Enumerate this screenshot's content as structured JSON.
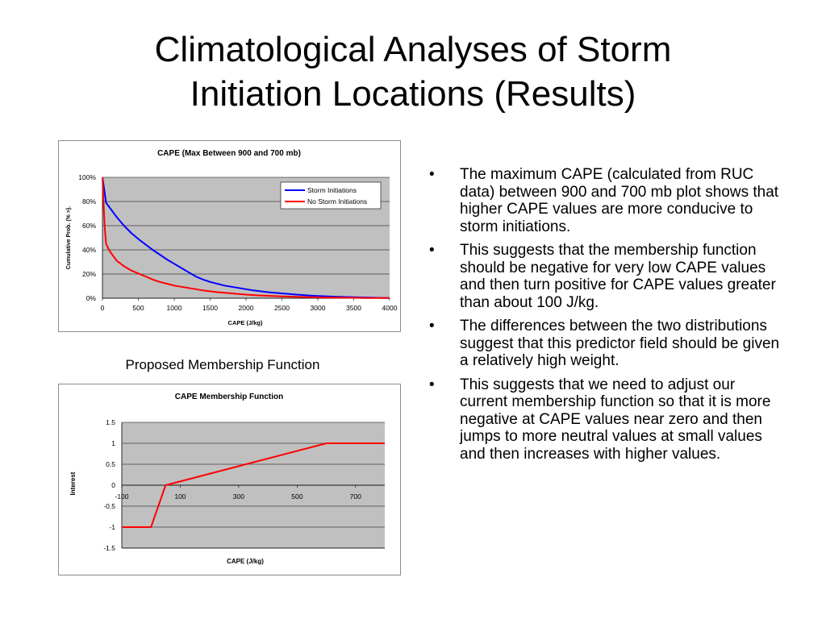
{
  "slide": {
    "title_line1": "Climatological Analyses of Storm",
    "title_line2": "Initiation Locations (Results)",
    "caption": "Proposed Membership Function",
    "bullet_glyph": "•",
    "bullets": [
      "The maximum CAPE (calculated from RUC data) between 900 and 700 mb plot shows that higher CAPE values are more conducive to storm initiations.",
      "This suggests that the membership function should be negative for very low CAPE values and then turn positive for CAPE values greater than about 100 J/kg.",
      "The differences between the two distributions suggest that this predictor field should be given a relatively high weight.",
      "This suggests that we need to adjust our current membership function so that it is more negative at CAPE values near zero and then jumps to more neutral values at small values and then increases with higher values."
    ]
  },
  "chart_data": [
    {
      "type": "line",
      "title": "CAPE (Max Between 900 and 700 mb)",
      "xlabel": "CAPE (J/kg)",
      "ylabel": "Cumulative Prob. (% >).",
      "xlim": [
        0,
        4000
      ],
      "ylim": [
        0,
        100
      ],
      "x_ticks": [
        "0",
        "500",
        "1000",
        "1500",
        "2000",
        "2500",
        "3000",
        "3500",
        "4000"
      ],
      "y_ticks": [
        "0%",
        "20%",
        "40%",
        "60%",
        "80%",
        "100%"
      ],
      "grid": true,
      "legend": "top-right",
      "plot_background": "#c0c0c0",
      "series": [
        {
          "name": "Storm Initiations",
          "color": "#0000ff",
          "x": [
            0,
            25,
            50,
            100,
            200,
            300,
            400,
            500,
            600,
            700,
            800,
            900,
            1000,
            1100,
            1200,
            1300,
            1400,
            1500,
            1700,
            1900,
            2100,
            2300,
            2500,
            2700,
            2900,
            3100,
            3300,
            3500,
            3700,
            3900,
            4000
          ],
          "y": [
            100,
            90,
            79,
            75,
            67,
            60,
            54,
            49,
            44.5,
            40,
            36,
            32,
            28.5,
            25,
            21.5,
            18,
            15.5,
            13.5,
            10.5,
            8.5,
            6.5,
            5,
            4,
            3,
            2.2,
            1.6,
            1.2,
            0.8,
            0.5,
            0.3,
            0.2
          ]
        },
        {
          "name": "No Storm Initiations",
          "color": "#ff0000",
          "x": [
            0,
            15,
            30,
            50,
            75,
            100,
            150,
            200,
            300,
            400,
            500,
            600,
            700,
            800,
            900,
            1000,
            1200,
            1400,
            1600,
            1800,
            2000,
            2200,
            2500,
            2800,
            3100,
            3400,
            3700,
            4000
          ],
          "y": [
            100,
            80,
            60,
            45,
            42,
            39,
            35,
            31,
            26.5,
            23,
            20.5,
            18,
            15.5,
            13.5,
            12,
            10.5,
            8.5,
            6.5,
            5,
            4,
            3,
            2.3,
            1.5,
            1,
            0.6,
            0.4,
            0.2,
            0.1
          ]
        }
      ]
    },
    {
      "type": "line",
      "title": "CAPE Membership Function",
      "xlabel": "CAPE (J/kg)",
      "ylabel": "Interest",
      "xlim": [
        -100,
        800
      ],
      "ylim": [
        -1.5,
        1.5
      ],
      "x_ticks": [
        "-100",
        "100",
        "300",
        "500",
        "700"
      ],
      "x_tick_values": [
        -100,
        100,
        300,
        500,
        700
      ],
      "y_ticks": [
        "-1.5",
        "-1",
        "-0.5",
        "0",
        "0.5",
        "1",
        "1.5"
      ],
      "y_tick_values": [
        -1.5,
        -1,
        -0.5,
        0,
        0.5,
        1,
        1.5
      ],
      "grid": true,
      "plot_background": "#c0c0c0",
      "series": [
        {
          "color": "#ff0000",
          "x": [
            -100,
            0,
            50,
            600,
            800
          ],
          "y": [
            -1,
            -1,
            0,
            1,
            1
          ]
        }
      ]
    }
  ]
}
